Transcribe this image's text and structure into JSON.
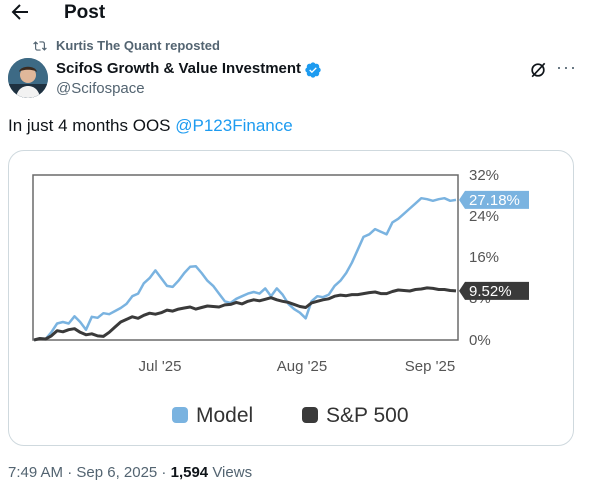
{
  "header": {
    "title": "Post"
  },
  "repost": {
    "label": "Kurtis The Quant reposted"
  },
  "author": {
    "name": "ScifoS Growth & Value Investment",
    "handle": "@Scifospace"
  },
  "tweet": {
    "text_prefix": "In just 4 months OOS ",
    "mention": "@P123Finance"
  },
  "colors": {
    "model": "#7ab3e0",
    "sp500": "#3a3a3a",
    "accent": "#1d9bf0",
    "muted": "#536471"
  },
  "chart_data": {
    "type": "line",
    "title": "",
    "xlabel": "",
    "ylabel": "",
    "x_ticks": [
      "Jul '25",
      "Aug '25",
      "Sep '25"
    ],
    "y_ticks": [
      "32%",
      "24%",
      "16%",
      "8%",
      "0%"
    ],
    "ylim": [
      0,
      32
    ],
    "series": [
      {
        "name": "Model",
        "end_label": "27.18%",
        "values": [
          0,
          0.3,
          0.2,
          1.5,
          3.2,
          3.5,
          3.2,
          4.6,
          3.5,
          2.0,
          4.5,
          4.3,
          5.2,
          5.0,
          5.6,
          6.2,
          7.0,
          8.5,
          9.0,
          11.0,
          12.0,
          13.5,
          12.0,
          10.5,
          10.3,
          11.5,
          13.0,
          14.2,
          14.3,
          13.0,
          11.5,
          10.5,
          9.0,
          7.5,
          7.2,
          8.0,
          8.5,
          9.0,
          9.3,
          9.0,
          10.0,
          8.5,
          10.0,
          8.8,
          7.0,
          6.0,
          5.3,
          4.2,
          7.5,
          8.5,
          8.3,
          8.8,
          10.5,
          11.5,
          13.0,
          15.0,
          17.5,
          20.0,
          20.5,
          21.5,
          21.0,
          20.5,
          22.8,
          23.5,
          24.5,
          25.5,
          26.5,
          27.5,
          27.3,
          27.0,
          27.3,
          27.5,
          27.0,
          27.18
        ]
      },
      {
        "name": "S&P 500",
        "end_label": "9.52%",
        "values": [
          0,
          0.3,
          0.2,
          0.8,
          1.8,
          1.6,
          2.0,
          2.2,
          1.5,
          1.0,
          1.2,
          0.8,
          0.7,
          1.5,
          2.5,
          3.5,
          4.0,
          4.5,
          4.2,
          4.8,
          5.2,
          5.0,
          5.3,
          5.8,
          5.6,
          6.0,
          6.2,
          6.4,
          6.0,
          6.3,
          6.6,
          6.5,
          6.4,
          6.8,
          6.9,
          7.3,
          7.0,
          7.5,
          7.8,
          7.6,
          7.9,
          8.2,
          7.8,
          7.5,
          7.3,
          6.9,
          6.5,
          6.3,
          7.2,
          7.5,
          7.8,
          8.0,
          8.5,
          8.7,
          8.6,
          8.8,
          8.8,
          9.0,
          9.2,
          9.3,
          9.0,
          9.0,
          9.4,
          9.7,
          9.6,
          9.5,
          9.8,
          9.9,
          10.1,
          10.0,
          9.8,
          9.8,
          9.6,
          9.52
        ]
      }
    ],
    "legend_position": "bottom",
    "grid": false
  },
  "footer": {
    "time": "7:49 AM · Sep 6, 2025 · ",
    "views_count": "1,594",
    "views_label": " Views"
  }
}
